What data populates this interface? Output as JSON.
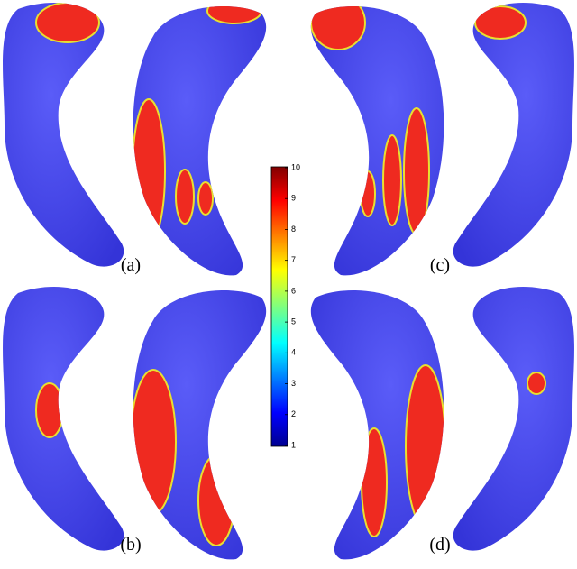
{
  "panels": [
    {
      "label": "(a)"
    },
    {
      "label": "(b)"
    },
    {
      "label": "(c)"
    },
    {
      "label": "(d)"
    }
  ],
  "colorbar": {
    "lim": [
      1,
      10
    ],
    "ticks": [
      1,
      2,
      3,
      4,
      5,
      6,
      7,
      8,
      9,
      10
    ]
  }
}
